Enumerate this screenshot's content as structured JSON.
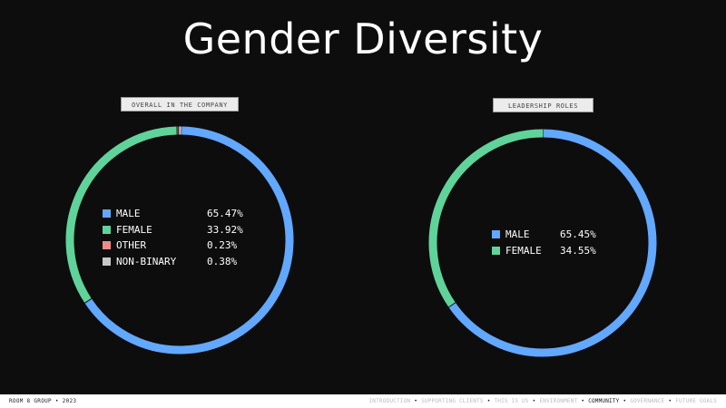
{
  "page": {
    "title": "Gender Diversity"
  },
  "colors": {
    "male": "#62a8ff",
    "female": "#5fd39a",
    "other": "#f08a8a",
    "non_binary": "#c8c8c8"
  },
  "chart_data": [
    {
      "type": "pie",
      "style": "donut",
      "label": "OVERALL IN THE COMPANY",
      "categories": [
        "MALE",
        "FEMALE",
        "OTHER",
        "NON-BINARY"
      ],
      "values": [
        65.47,
        33.92,
        0.23,
        0.38
      ],
      "value_labels": [
        "65.47%",
        "33.92%",
        "0.23%",
        "0.38%"
      ],
      "colors": [
        "#62a8ff",
        "#5fd39a",
        "#f08a8a",
        "#c8c8c8"
      ],
      "legend": "center"
    },
    {
      "type": "pie",
      "style": "donut",
      "label": "LEADERSHIP ROLES",
      "categories": [
        "MALE",
        "FEMALE"
      ],
      "values": [
        65.45,
        34.55
      ],
      "value_labels": [
        "65.45%",
        "34.55%"
      ],
      "colors": [
        "#62a8ff",
        "#5fd39a"
      ],
      "legend": "center"
    }
  ],
  "footer": {
    "brand": "ROOM 8 GROUP • 2023",
    "nav": [
      {
        "label": "INTRODUCTION",
        "active": false
      },
      {
        "label": "SUPPORTING CLIENTS",
        "active": false
      },
      {
        "label": "THIS IS US",
        "active": false
      },
      {
        "label": "ENVIRONMENT",
        "active": false
      },
      {
        "label": "COMMUNITY",
        "active": true
      },
      {
        "label": "GOVERNANCE",
        "active": false
      },
      {
        "label": "FUTURE GOALS",
        "active": false
      }
    ]
  }
}
